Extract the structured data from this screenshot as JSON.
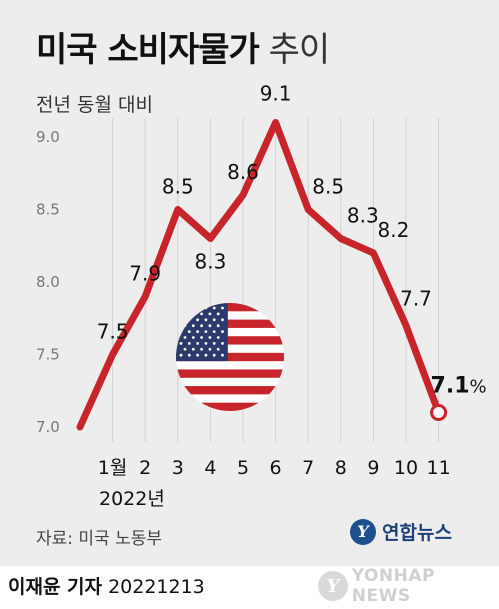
{
  "title": {
    "bold": "미국 소비자물가",
    "light": "추이"
  },
  "subtitle": "전년 동월 대비",
  "year_label": "2022년",
  "source": "자료: 미국 노동부",
  "agency_logo": {
    "glyph": "Y",
    "name": "연합뉴스"
  },
  "footer": {
    "author": "이재윤 기자",
    "date": "20221213"
  },
  "watermark": {
    "glyph": "Y",
    "text": "YONHAP NEWS"
  },
  "colors": {
    "line": "#c8242b",
    "panel": "#ededed",
    "grid": "#d2d2d2"
  },
  "decoration": "us-flag-icon",
  "chart_data": {
    "type": "line",
    "title": "미국 소비자물가 추이",
    "ylabel": "전년 동월 대비",
    "xlabel": "2022년",
    "categories": [
      "",
      "1월",
      "2",
      "3",
      "4",
      "5",
      "6",
      "7",
      "8",
      "9",
      "10",
      "11"
    ],
    "values": [
      7.0,
      7.5,
      7.9,
      8.5,
      8.3,
      8.6,
      9.1,
      8.5,
      8.3,
      8.2,
      7.7,
      7.1
    ],
    "data_labels": [
      "",
      "7.5",
      "7.9",
      "8.5",
      "8.3",
      "8.6",
      "9.1",
      "8.5",
      "8.3",
      "8.2",
      "7.7",
      "7.1"
    ],
    "last_unit": "%",
    "yticks": [
      "7.0",
      "7.5",
      "8.0",
      "8.5",
      "9.0"
    ],
    "ylim": [
      7.0,
      9.0
    ],
    "grid": "vertical"
  }
}
